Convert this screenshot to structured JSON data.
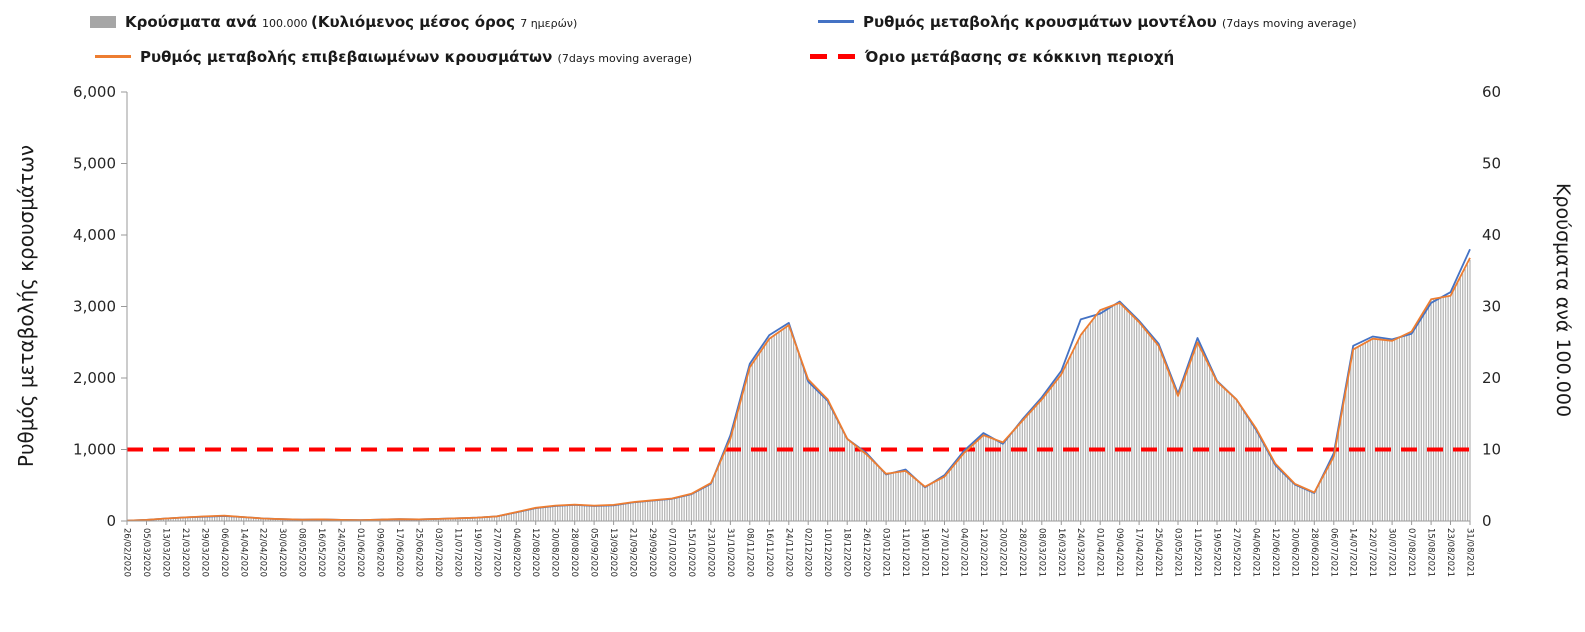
{
  "legend": {
    "items": [
      {
        "swatch": "bar",
        "color": "#a6a6a6",
        "segments": [
          {
            "text": "Κρούσματα ανά ",
            "size": "big"
          },
          {
            "text": "100.000 ",
            "size": "small"
          },
          {
            "text": "(Κυλιόμενος μέσος όρος ",
            "size": "big"
          },
          {
            "text": "7 ημερών)",
            "size": "small"
          }
        ]
      },
      {
        "swatch": "line",
        "color": "#4472c4",
        "segments": [
          {
            "text": "Ρυθμός μεταβολής κρουσμάτων μοντέλου ",
            "size": "big"
          },
          {
            "text": "(7days moving average)",
            "size": "small"
          }
        ]
      },
      {
        "swatch": "line",
        "color": "#ed7d31",
        "segments": [
          {
            "text": "Ρυθμός μεταβολής επιβεβαιωμένων κρουσμάτων ",
            "size": "big"
          },
          {
            "text": "(7days moving average)",
            "size": "small"
          }
        ]
      },
      {
        "swatch": "dash",
        "color": "#ff0000",
        "segments": [
          {
            "text": "Όριο μετάβασης σε κόκκινη περιοχή",
            "size": "big"
          }
        ]
      }
    ]
  },
  "chart_data": {
    "type": "bar+line",
    "x_tick_labels": [
      "26/02/2020",
      "05/03/2020",
      "13/03/2020",
      "21/03/2020",
      "29/03/2020",
      "06/04/2020",
      "14/04/2020",
      "22/04/2020",
      "30/04/2020",
      "08/05/2020",
      "16/05/2020",
      "24/05/2020",
      "01/06/2020",
      "09/06/2020",
      "17/06/2020",
      "25/06/2020",
      "03/07/2020",
      "11/07/2020",
      "19/07/2020",
      "27/07/2020",
      "04/08/2020",
      "12/08/2020",
      "20/08/2020",
      "28/08/2020",
      "05/09/2020",
      "13/09/2020",
      "21/09/2020",
      "29/09/2020",
      "07/10/2020",
      "15/10/2020",
      "23/10/2020",
      "31/10/2020",
      "08/11/2020",
      "16/11/2020",
      "24/11/2020",
      "02/12/2020",
      "10/12/2020",
      "18/12/2020",
      "26/12/2020",
      "03/01/2021",
      "11/01/2021",
      "19/01/2021",
      "27/01/2021",
      "04/02/2021",
      "12/02/2021",
      "20/02/2021",
      "28/02/2021",
      "08/03/2021",
      "16/03/2021",
      "24/03/2021",
      "01/04/2021",
      "09/04/2021",
      "17/04/2021",
      "25/04/2021",
      "03/05/2021",
      "11/05/2021",
      "19/05/2021",
      "27/05/2021",
      "04/06/2021",
      "12/06/2021",
      "20/06/2021",
      "28/06/2021",
      "06/07/2021",
      "14/07/2021",
      "22/07/2021",
      "30/07/2021",
      "07/08/2021",
      "15/08/2021",
      "23/08/2021",
      "31/08/2021"
    ],
    "left_axis": {
      "title": "Ρυθμός μεταβολής κρουσμάτων",
      "min": 0,
      "max": 6000,
      "step": 1000,
      "tick_labels": [
        "0",
        "1,000",
        "2,000",
        "3,000",
        "4,000",
        "5,000",
        "6,000"
      ]
    },
    "right_axis": {
      "title": "Κρούσματα ανά 100.000",
      "min": 0,
      "max": 60,
      "step": 10,
      "tick_labels": [
        "0",
        "10",
        "20",
        "30",
        "40",
        "50",
        "60"
      ]
    },
    "series": [
      {
        "name": "Κρούσματα ανά 100.000 (Κυλιόμενος μέσος όρος 7 ημερών)",
        "type": "bar",
        "axis": "right",
        "color": "#b3b3b3",
        "values": [
          0.1,
          0.2,
          0.4,
          0.5,
          0.7,
          0.8,
          0.6,
          0.4,
          0.3,
          0.2,
          0.2,
          0.2,
          0.1,
          0.2,
          0.3,
          0.2,
          0.3,
          0.4,
          0.5,
          0.7,
          1.3,
          1.9,
          2.2,
          2.3,
          2.2,
          2.3,
          2.7,
          2.9,
          3.2,
          3.8,
          5.3,
          11.5,
          21.5,
          25.5,
          27.4,
          19.8,
          17,
          11.5,
          9.3,
          6.6,
          7,
          4.8,
          6.2,
          9.5,
          12,
          11,
          14,
          17,
          20.5,
          26,
          29.5,
          30.5,
          27.8,
          24.5,
          17.5,
          25,
          19.5,
          17,
          13,
          8,
          5.2,
          4,
          9,
          24,
          25.5,
          25.2,
          26.5,
          31,
          31.5,
          36.5
        ]
      },
      {
        "name": "Ρυθμός μεταβολής κρουσμάτων μοντέλου (7days moving average)",
        "type": "line",
        "axis": "left",
        "color": "#4472c4",
        "values": [
          5,
          15,
          35,
          50,
          60,
          70,
          55,
          35,
          25,
          20,
          22,
          15,
          12,
          20,
          25,
          22,
          30,
          38,
          48,
          65,
          120,
          180,
          210,
          225,
          210,
          220,
          260,
          285,
          310,
          375,
          520,
          1200,
          2200,
          2600,
          2770,
          1950,
          1680,
          1150,
          950,
          650,
          720,
          470,
          640,
          980,
          1230,
          1080,
          1420,
          1730,
          2100,
          2820,
          2900,
          3070,
          2800,
          2480,
          1780,
          2560,
          1960,
          1700,
          1280,
          780,
          510,
          390,
          950,
          2450,
          2580,
          2540,
          2620,
          3050,
          3200,
          3800
        ]
      },
      {
        "name": "Ρυθμός μεταβολής επιβεβαιωμένων κρουσμάτων (7days moving average)",
        "type": "line",
        "axis": "left",
        "color": "#ed7d31",
        "values": [
          5,
          15,
          35,
          50,
          65,
          75,
          55,
          35,
          25,
          20,
          22,
          15,
          12,
          20,
          25,
          22,
          30,
          38,
          48,
          65,
          125,
          185,
          215,
          230,
          215,
          225,
          265,
          290,
          315,
          380,
          530,
          1150,
          2150,
          2550,
          2740,
          1980,
          1700,
          1150,
          930,
          660,
          700,
          480,
          620,
          950,
          1200,
          1100,
          1400,
          1700,
          2050,
          2600,
          2950,
          3050,
          2780,
          2450,
          1750,
          2500,
          1950,
          1700,
          1300,
          800,
          520,
          400,
          900,
          2400,
          2550,
          2520,
          2650,
          3100,
          3150,
          3680
        ]
      }
    ],
    "threshold": {
      "name": "Όριο μετάβασης σε κόκκινη περιοχή",
      "axis": "left",
      "value": 1000,
      "color": "#ff0000",
      "style": "dashed"
    }
  }
}
